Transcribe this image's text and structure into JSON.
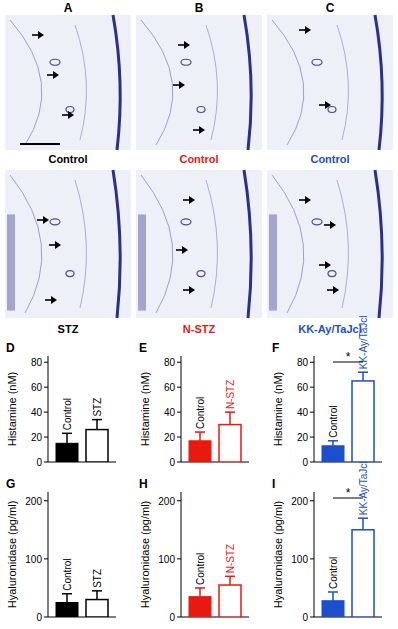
{
  "micrographs": {
    "panels": [
      {
        "label": "A",
        "top": "Control",
        "bottom": "STZ",
        "color": "#000000"
      },
      {
        "label": "B",
        "top": "Control",
        "bottom": "N-STZ",
        "color": "#e8190f"
      },
      {
        "label": "C",
        "top": "Control",
        "bottom": "KK-Ay/TaJcl",
        "color": "#1b4fcc"
      }
    ]
  },
  "chart_data": [
    {
      "type": "bar",
      "panel": "D",
      "y_label": "Histamine (nM)",
      "categories": [
        "Control",
        "STZ"
      ],
      "values": [
        15,
        26
      ],
      "errors": [
        8,
        8
      ],
      "colors": [
        "#000000",
        "#000000"
      ],
      "ylim": [
        0,
        85
      ],
      "yticks": [
        0,
        20,
        40,
        60,
        80
      ]
    },
    {
      "type": "bar",
      "panel": "E",
      "y_label": "Histamine (nM)",
      "categories": [
        "Control",
        "N-STZ"
      ],
      "values": [
        17,
        30
      ],
      "errors": [
        7,
        10
      ],
      "colors": [
        "#e8190f",
        "#e8190f"
      ],
      "ylim": [
        0,
        85
      ],
      "yticks": [
        0,
        20,
        40,
        60,
        80
      ]
    },
    {
      "type": "bar",
      "panel": "F",
      "y_label": "Histamine (nM)",
      "categories": [
        "Control",
        "KK-Ay/TaJcl"
      ],
      "values": [
        13,
        65
      ],
      "errors": [
        4,
        7
      ],
      "colors": [
        "#1b4fcc",
        "#1b4fcc"
      ],
      "ylim": [
        0,
        85
      ],
      "yticks": [
        0,
        20,
        40,
        60,
        80
      ],
      "significance": "*"
    },
    {
      "type": "bar",
      "panel": "G",
      "y_label": "Hyaluronidase (pg/ml)",
      "categories": [
        "Control",
        "STZ"
      ],
      "values": [
        25,
        30
      ],
      "errors": [
        15,
        15
      ],
      "colors": [
        "#000000",
        "#000000"
      ],
      "ylim": [
        0,
        215
      ],
      "yticks": [
        0,
        100,
        200
      ]
    },
    {
      "type": "bar",
      "panel": "H",
      "y_label": "Hyaluronidase (pg/ml)",
      "categories": [
        "Control",
        "N-STZ"
      ],
      "values": [
        35,
        55
      ],
      "errors": [
        15,
        15
      ],
      "colors": [
        "#e8190f",
        "#e8190f"
      ],
      "ylim": [
        0,
        215
      ],
      "yticks": [
        0,
        100,
        200
      ]
    },
    {
      "type": "bar",
      "panel": "I",
      "y_label": "Hyaluronidase (pg/ml)",
      "categories": [
        "Control",
        "KK-Ay/TaJcl"
      ],
      "values": [
        28,
        150
      ],
      "errors": [
        15,
        20
      ],
      "colors": [
        "#1b4fcc",
        "#1b4fcc"
      ],
      "ylim": [
        0,
        215
      ],
      "yticks": [
        0,
        100,
        200
      ],
      "significance": "*"
    }
  ]
}
